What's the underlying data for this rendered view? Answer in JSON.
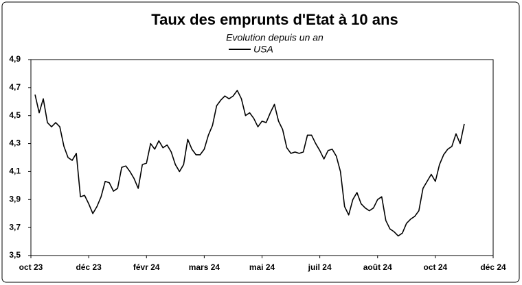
{
  "chart_data": {
    "type": "line",
    "title": "Taux des emprunts d'Etat à 10 ans",
    "subtitle": "Evolution depuis un an",
    "categories": [
      "oct 23",
      null,
      null,
      null,
      null,
      null,
      null,
      null,
      null,
      null,
      null,
      null,
      null,
      null,
      "déc 23",
      null,
      null,
      null,
      null,
      null,
      null,
      null,
      null,
      null,
      null,
      null,
      null,
      null,
      "févr 24",
      null,
      null,
      null,
      null,
      null,
      null,
      null,
      null,
      null,
      null,
      null,
      null,
      null,
      "mars 24",
      null,
      null,
      null,
      null,
      null,
      null,
      null,
      null,
      null,
      null,
      null,
      null,
      null,
      "mai 24",
      null,
      null,
      null,
      null,
      null,
      null,
      null,
      null,
      null,
      null,
      null,
      null,
      null,
      "juil 24",
      null,
      null,
      null,
      null,
      null,
      null,
      null,
      null,
      null,
      null,
      null,
      null,
      null,
      "août 24",
      null,
      null,
      null,
      null,
      null,
      null,
      null,
      null,
      null,
      null,
      null,
      null,
      null,
      "oct 24",
      null,
      null,
      null,
      null,
      null,
      null,
      null,
      null,
      null,
      null,
      null,
      null,
      null,
      "déc 24"
    ],
    "series": [
      {
        "name": "USA",
        "color": "#000000",
        "values": [
          null,
          4.65,
          4.52,
          4.62,
          4.45,
          4.42,
          4.45,
          4.42,
          4.28,
          4.2,
          4.18,
          4.23,
          3.92,
          3.93,
          3.87,
          3.8,
          3.85,
          3.92,
          4.03,
          4.02,
          3.96,
          3.98,
          4.13,
          4.14,
          4.1,
          4.05,
          3.98,
          4.15,
          4.16,
          4.3,
          4.26,
          4.32,
          4.27,
          4.29,
          4.24,
          4.15,
          4.1,
          4.15,
          4.33,
          4.26,
          4.22,
          4.22,
          4.26,
          4.36,
          4.43,
          4.57,
          4.61,
          4.64,
          4.62,
          4.64,
          4.68,
          4.62,
          4.5,
          4.52,
          4.48,
          4.42,
          4.46,
          4.45,
          4.52,
          4.58,
          4.46,
          4.4,
          4.27,
          4.23,
          4.24,
          4.23,
          4.24,
          4.36,
          4.36,
          4.3,
          4.25,
          4.19,
          4.25,
          4.26,
          4.21,
          4.1,
          3.85,
          3.79,
          3.9,
          3.95,
          3.87,
          3.84,
          3.82,
          3.84,
          3.9,
          3.92,
          3.75,
          3.69,
          3.67,
          3.64,
          3.66,
          3.73,
          3.76,
          3.78,
          3.82,
          3.98,
          4.03,
          4.08,
          4.03,
          4.15,
          4.22,
          4.26,
          4.28,
          4.37,
          4.3,
          4.44,
          null,
          null,
          null,
          null,
          null,
          null,
          null
        ]
      }
    ],
    "ylim": [
      3.5,
      4.9
    ],
    "yticks": [
      {
        "value": 3.5,
        "label": "3,5"
      },
      {
        "value": 3.7,
        "label": "3,7"
      },
      {
        "value": 3.9,
        "label": "3,9"
      },
      {
        "value": 4.1,
        "label": "4,1"
      },
      {
        "value": 4.3,
        "label": "4,3"
      },
      {
        "value": 4.5,
        "label": "4,5"
      },
      {
        "value": 4.7,
        "label": "4,7"
      },
      {
        "value": 4.9,
        "label": "4,9"
      }
    ],
    "grid": false
  }
}
